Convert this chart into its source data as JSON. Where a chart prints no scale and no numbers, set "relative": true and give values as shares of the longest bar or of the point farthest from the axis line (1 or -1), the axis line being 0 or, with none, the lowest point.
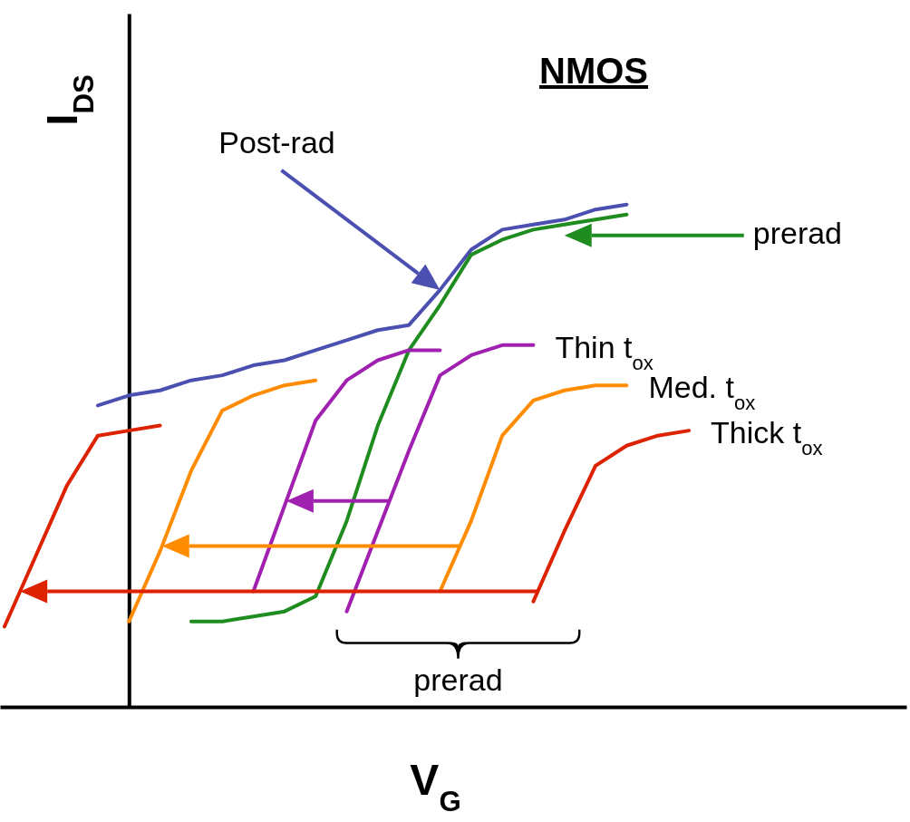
{
  "chart_data": {
    "type": "line",
    "title": "NMOS",
    "xlabel": "V$_{G}$",
    "ylabel": "I$_{DS}$",
    "relative": true,
    "annotations": [
      "Post-rad",
      "prerad",
      "prerad"
    ],
    "categories": [
      null,
      null,
      null,
      null,
      null,
      null,
      null,
      null,
      null,
      null,
      null,
      null,
      null,
      null,
      null,
      null,
      null,
      null,
      null,
      null,
      null,
      null,
      null
    ],
    "series": [
      {
        "color": "#4a4fb0",
        "values": [
          null,
          null,
          null,
          0.6,
          0.62,
          0.63,
          0.65,
          0.66,
          0.68,
          0.69,
          0.71,
          0.73,
          0.75,
          0.76,
          0.83,
          0.91,
          0.95,
          0.96,
          0.97,
          0.99,
          1.0,
          null,
          null
        ]
      },
      {
        "color": "#1e8c1e",
        "values": [
          null,
          null,
          null,
          null,
          null,
          null,
          0.17,
          0.17,
          0.18,
          0.19,
          0.22,
          0.37,
          0.56,
          0.71,
          0.8,
          0.9,
          0.93,
          0.95,
          0.96,
          0.97,
          0.98,
          null,
          null
        ]
      },
      {
        "color": "#a020b0",
        "values": [
          null,
          null,
          null,
          null,
          null,
          null,
          null,
          null,
          0.23,
          0.4,
          0.57,
          0.65,
          0.69,
          0.71,
          0.71,
          null,
          null,
          null,
          null,
          null,
          null,
          null,
          null
        ]
      },
      {
        "name": "Thin t$_{ox}$",
        "color": "#a020b0",
        "values": [
          null,
          null,
          null,
          null,
          null,
          null,
          null,
          null,
          null,
          null,
          null,
          0.19,
          0.35,
          0.51,
          0.66,
          0.7,
          0.72,
          0.72,
          null,
          null,
          null,
          null,
          null
        ]
      },
      {
        "color": "#ff8c00",
        "values": [
          null,
          null,
          null,
          null,
          0.17,
          0.31,
          0.47,
          0.59,
          0.62,
          0.64,
          0.65,
          null,
          null,
          null,
          null,
          null,
          null,
          null,
          null,
          null,
          null,
          null,
          null
        ]
      },
      {
        "name": "Med. t$_{ox}$",
        "color": "#ff8c00",
        "values": [
          null,
          null,
          null,
          null,
          null,
          null,
          null,
          null,
          null,
          null,
          null,
          null,
          null,
          null,
          0.23,
          0.37,
          0.54,
          0.61,
          0.63,
          0.64,
          0.64,
          null,
          null
        ]
      },
      {
        "color": "#dd2200",
        "values": [
          0.16,
          0.3,
          0.44,
          0.54,
          0.55,
          0.56,
          null,
          null,
          null,
          null,
          null,
          null,
          null,
          null,
          null,
          null,
          null,
          null,
          null,
          null,
          null,
          null,
          null
        ]
      },
      {
        "name": "Thick t$_{ox}$",
        "color": "#dd2200",
        "values": [
          null,
          null,
          null,
          null,
          null,
          null,
          null,
          null,
          null,
          null,
          null,
          null,
          null,
          null,
          null,
          null,
          null,
          0.21,
          0.35,
          0.48,
          0.52,
          0.54,
          0.55
        ]
      }
    ]
  }
}
